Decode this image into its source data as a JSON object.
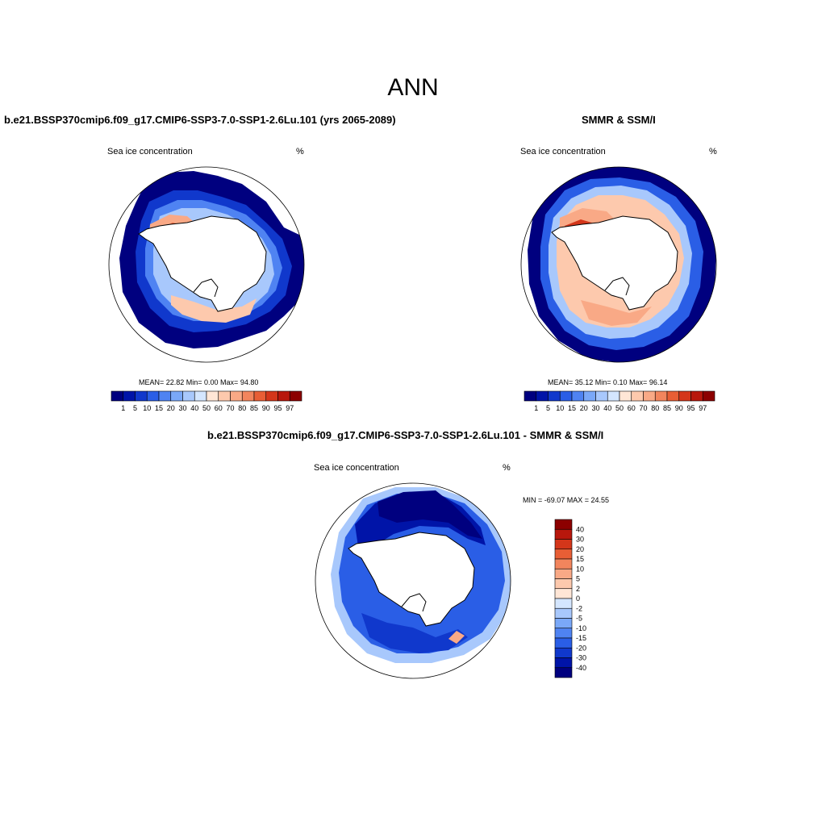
{
  "page": {
    "title": "ANN",
    "diff_title": "b.e21.BSSP370cmip6.f09_g17.CMIP6-SSP3-7.0-SSP1-2.6Lu.101 - SMMR & SSM/I"
  },
  "panels": [
    {
      "title": "b.e21.BSSP370cmip6.f09_g17.CMIP6-SSP3-7.0-SSP1-2.6Lu.101 (yrs 2065-2089)",
      "variable": "Sea ice concentration",
      "units": "%",
      "stats": "MEAN=  22.82  Min=   0.00  Max=  94.80"
    },
    {
      "title": "SMMR & SSM/I",
      "variable": "Sea ice concentration",
      "units": "%",
      "stats": "MEAN=  35.12  Min=   0.10  Max=  96.14"
    }
  ],
  "diff_panel": {
    "variable": "Sea ice concentration",
    "units": "%",
    "stats": "MIN = -69.07 MAX =  24.55"
  },
  "colorbar": {
    "labels": [
      "1",
      "5",
      "10",
      "15",
      "20",
      "30",
      "40",
      "50",
      "60",
      "70",
      "80",
      "85",
      "90",
      "95",
      "97"
    ],
    "colors": [
      "#00007f",
      "#0014a8",
      "#1038cc",
      "#2a5ee6",
      "#4f83f2",
      "#7aa8f8",
      "#a8c8fc",
      "#d4e6ff",
      "#ffe6d6",
      "#fdc9ad",
      "#f9a986",
      "#f2855d",
      "#e85e35",
      "#d4361a",
      "#b8170c",
      "#8c0000"
    ]
  },
  "diff_colorbar": {
    "labels": [
      "40",
      "30",
      "20",
      "15",
      "10",
      "5",
      "2",
      "0",
      "-2",
      "-5",
      "-10",
      "-15",
      "-20",
      "-30",
      "-40"
    ],
    "colors": [
      "#8c0000",
      "#b8170c",
      "#d4361a",
      "#e85e35",
      "#f2855d",
      "#f9a986",
      "#fdc9ad",
      "#ffe6d6",
      "#d4e6ff",
      "#a8c8fc",
      "#7aa8f8",
      "#4f83f2",
      "#2a5ee6",
      "#1038cc",
      "#0014a8",
      "#00007f"
    ]
  }
}
